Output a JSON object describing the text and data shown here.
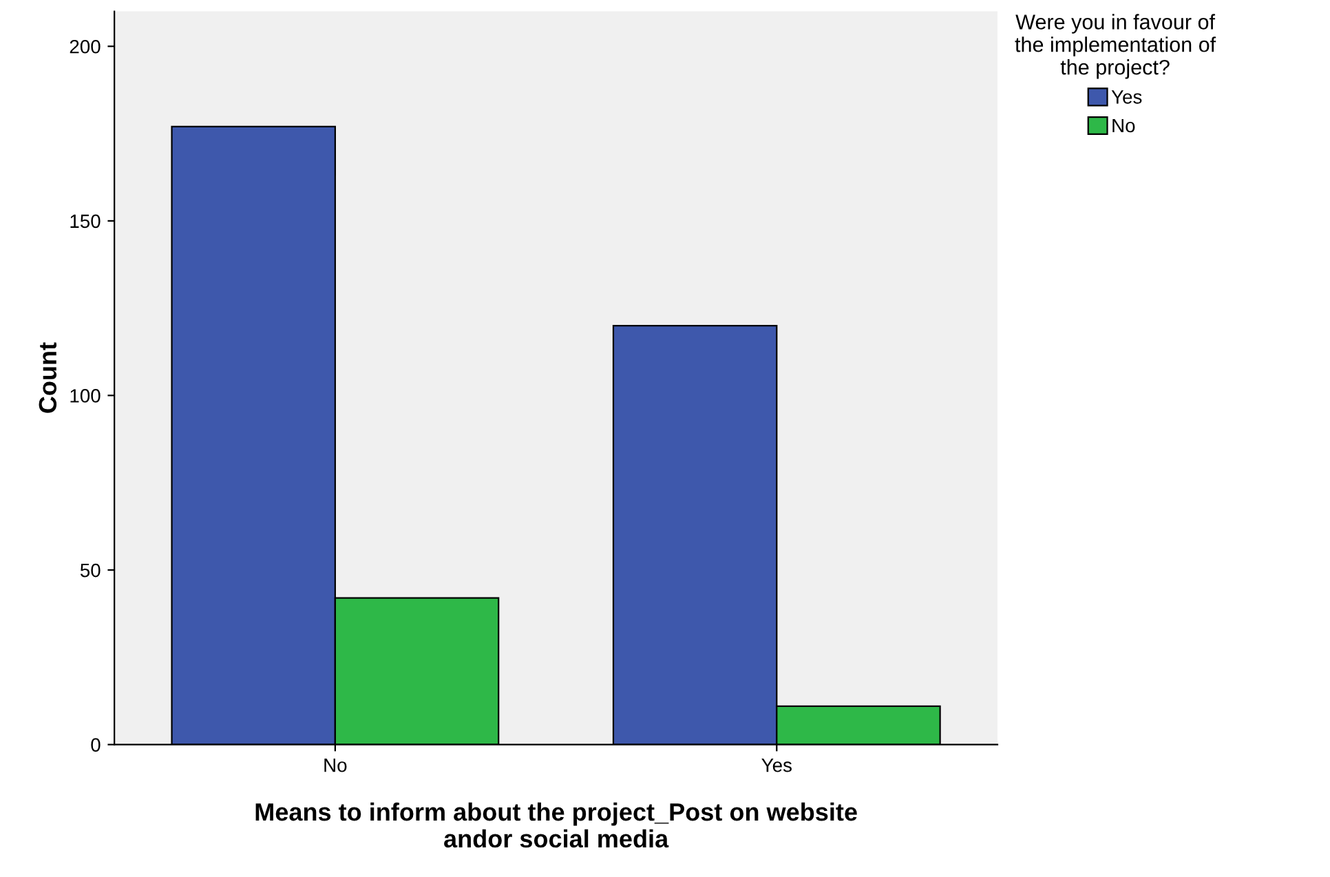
{
  "chart_data": {
    "type": "bar",
    "xlabel": "Means to inform about the project_Post on website\nandor social media",
    "ylabel": "Count",
    "categories": [
      "No",
      "Yes"
    ],
    "series": [
      {
        "name": "Yes",
        "color": "#3e58ac",
        "values": [
          177,
          120
        ]
      },
      {
        "name": "No",
        "color": "#2eb848",
        "values": [
          42,
          11
        ]
      }
    ],
    "legend_title": "Were you in favour of\nthe implementation of\nthe project?",
    "legend": "top right",
    "ylim": [
      0,
      210
    ],
    "yticks": [
      0,
      50,
      100,
      150,
      200
    ],
    "grid": false
  }
}
